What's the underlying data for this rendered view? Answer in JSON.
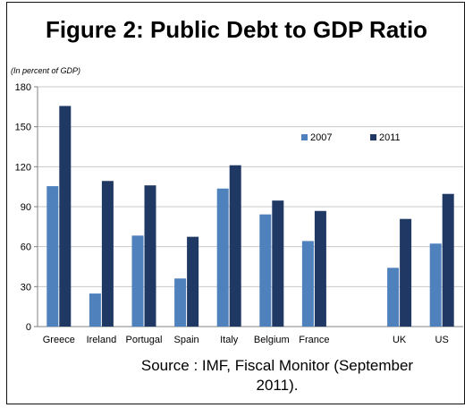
{
  "figure": {
    "title": "Figure 2: Public Debt to GDP Ratio",
    "source_line1": "Source : IMF, Fiscal Monitor (September",
    "source_line2": "2011)."
  },
  "chart_data": {
    "type": "bar",
    "title": "Figure 2: Public Debt to GDP Ratio",
    "subtitle": "(In percent of GDP)",
    "xlabel": "",
    "ylabel": "",
    "categories": [
      "Greece",
      "Ireland",
      "Portugal",
      "Spain",
      "Italy",
      "Belgium",
      "France",
      "",
      "UK",
      "US"
    ],
    "series": [
      {
        "name": "2007",
        "color": "#4f81bd",
        "values": [
          105.4,
          24.8,
          68.3,
          36.1,
          103.6,
          84.2,
          64.2,
          null,
          44.1,
          62.3
        ]
      },
      {
        "name": "2011",
        "color": "#1f3864",
        "values": [
          165.6,
          109.3,
          106.0,
          67.4,
          121.1,
          94.6,
          86.8,
          null,
          80.8,
          99.6
        ]
      }
    ],
    "ylim": [
      0,
      180
    ],
    "yticks": [
      0,
      30,
      60,
      90,
      120,
      150,
      180
    ],
    "grid": true,
    "legend_position": "top-right"
  }
}
